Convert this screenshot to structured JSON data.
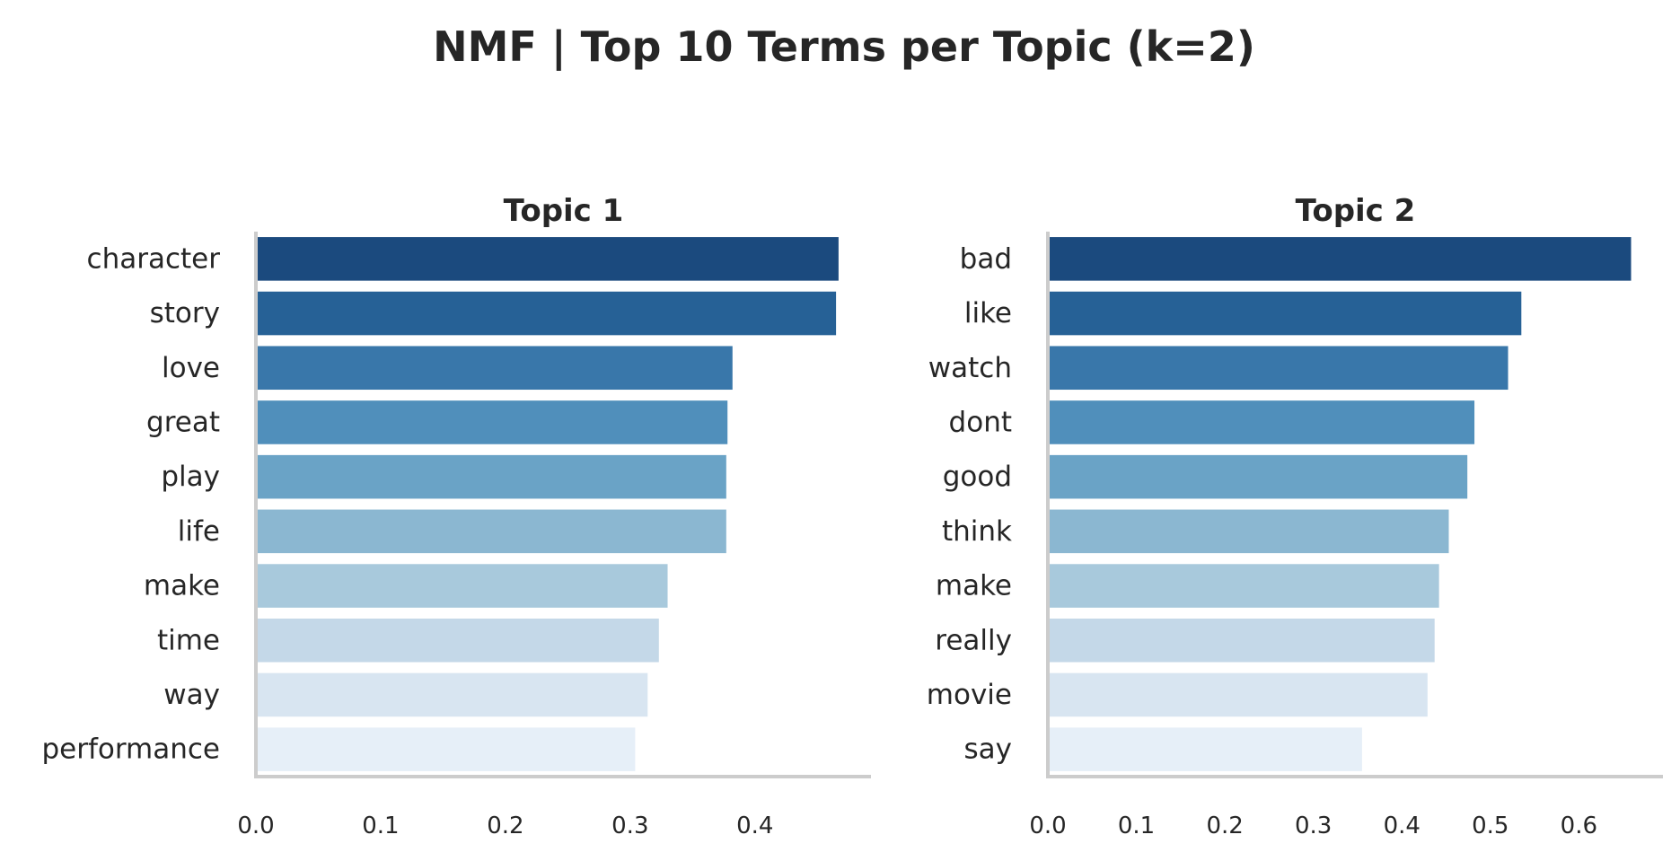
{
  "figure": {
    "title": "NMF | Top 10 Terms per Topic (k=2)"
  },
  "chart_data": [
    {
      "type": "bar",
      "orientation": "horizontal",
      "title": "Topic 1",
      "xlabel": "",
      "ylabel": "",
      "categories": [
        "character",
        "story",
        "love",
        "great",
        "play",
        "life",
        "make",
        "time",
        "way",
        "performance"
      ],
      "values": [
        0.467,
        0.465,
        0.382,
        0.378,
        0.377,
        0.377,
        0.33,
        0.323,
        0.314,
        0.304
      ],
      "xlim": [
        0,
        0.493
      ],
      "xticks": [
        "0.0",
        "0.1",
        "0.2",
        "0.3",
        "0.4"
      ],
      "grid": false,
      "palette": "Blues_r"
    },
    {
      "type": "bar",
      "orientation": "horizontal",
      "title": "Topic 2",
      "xlabel": "",
      "ylabel": "",
      "categories": [
        "bad",
        "like",
        "watch",
        "dont",
        "good",
        "think",
        "make",
        "really",
        "movie",
        "say"
      ],
      "values": [
        0.659,
        0.535,
        0.52,
        0.482,
        0.474,
        0.453,
        0.442,
        0.437,
        0.429,
        0.355
      ],
      "xlim": [
        0,
        0.695
      ],
      "xticks": [
        "0.0",
        "0.1",
        "0.2",
        "0.3",
        "0.4",
        "0.5",
        "0.6"
      ],
      "grid": false,
      "palette": "Blues_r"
    }
  ],
  "colors": {
    "bars": [
      "#1b4a7e",
      "#266196",
      "#3977aa",
      "#508fbb",
      "#6aa3c6",
      "#8bb7d1",
      "#a8c9dc",
      "#c4d8e8",
      "#d8e5f1",
      "#e6eff8"
    ],
    "axis": "#cccccc",
    "text": "#262626"
  }
}
